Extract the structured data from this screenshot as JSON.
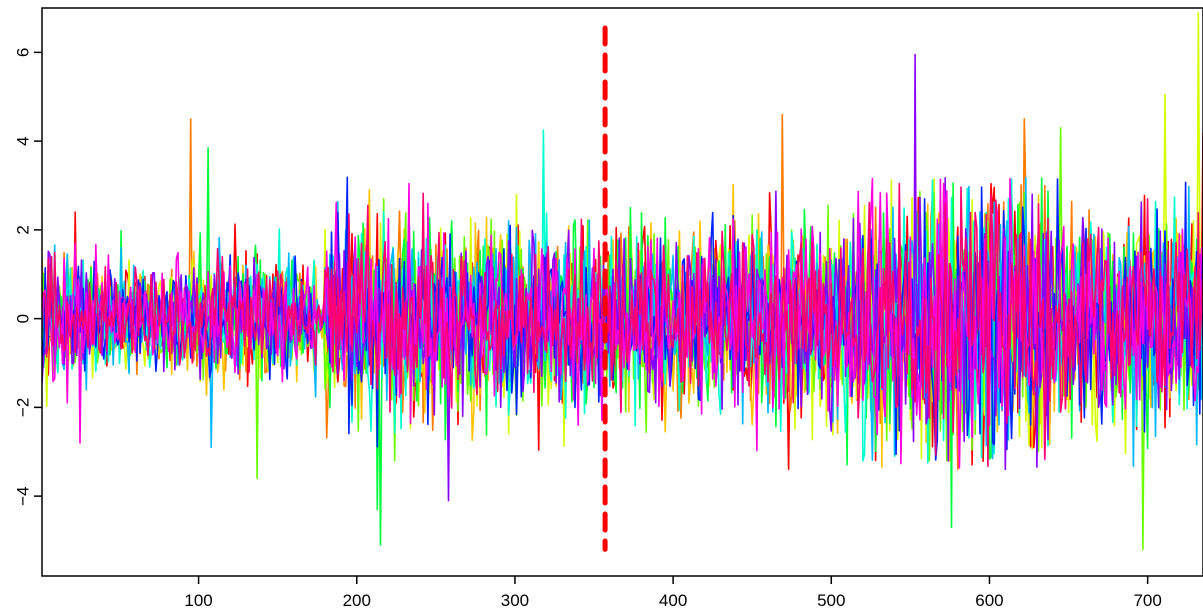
{
  "chart_data": {
    "type": "line",
    "title": "",
    "xlabel": "",
    "ylabel": "",
    "xlim": [
      1,
      735
    ],
    "ylim": [
      -5.8,
      7.0
    ],
    "x_ticks": [
      {
        "value": 100,
        "label": "100"
      },
      {
        "value": 200,
        "label": "200"
      },
      {
        "value": 300,
        "label": "300"
      },
      {
        "value": 400,
        "label": "400"
      },
      {
        "value": 500,
        "label": "500"
      },
      {
        "value": 600,
        "label": "600"
      },
      {
        "value": 700,
        "label": "700"
      }
    ],
    "y_ticks": [
      {
        "value": -4,
        "label": "−4"
      },
      {
        "value": -2,
        "label": "−2"
      },
      {
        "value": 0,
        "label": "0"
      },
      {
        "value": 2,
        "label": "2"
      },
      {
        "value": 4,
        "label": "4"
      },
      {
        "value": 6,
        "label": "6"
      }
    ],
    "n_points": 735,
    "series_colors": [
      "#FF0000",
      "#FF7A00",
      "#FFC300",
      "#D7FF00",
      "#6BFF00",
      "#00FF3A",
      "#00FFD0",
      "#00B8FF",
      "#0022FF",
      "#8A00FF",
      "#FF00E0",
      "#FF0070"
    ],
    "noise_segments": [
      {
        "x_start": 1,
        "x_end": 30,
        "amplitude": 0.7
      },
      {
        "x_start": 30,
        "x_end": 95,
        "amplitude": 0.55
      },
      {
        "x_start": 95,
        "x_end": 130,
        "amplitude": 0.6
      },
      {
        "x_start": 130,
        "x_end": 175,
        "amplitude": 0.65
      },
      {
        "x_start": 175,
        "x_end": 180,
        "amplitude": 0.2
      },
      {
        "x_start": 180,
        "x_end": 260,
        "amplitude": 1.0
      },
      {
        "x_start": 260,
        "x_end": 360,
        "amplitude": 0.95
      },
      {
        "x_start": 360,
        "x_end": 440,
        "amplitude": 0.9
      },
      {
        "x_start": 440,
        "x_end": 520,
        "amplitude": 1.0
      },
      {
        "x_start": 520,
        "x_end": 560,
        "amplitude": 1.3
      },
      {
        "x_start": 560,
        "x_end": 640,
        "amplitude": 1.5
      },
      {
        "x_start": 640,
        "x_end": 700,
        "amplitude": 1.1
      },
      {
        "x_start": 700,
        "x_end": 735,
        "amplitude": 1.2
      }
    ],
    "spikes": [
      {
        "x": 22,
        "y": 2.4,
        "series": 0
      },
      {
        "x": 25,
        "y": -2.8,
        "series": 10
      },
      {
        "x": 95,
        "y": 4.5,
        "series": 1
      },
      {
        "x": 106,
        "y": 3.85,
        "series": 5
      },
      {
        "x": 108,
        "y": -2.9,
        "series": 7
      },
      {
        "x": 137,
        "y": -3.6,
        "series": 4
      },
      {
        "x": 213,
        "y": -4.3,
        "series": 5
      },
      {
        "x": 215,
        "y": -5.1,
        "series": 5
      },
      {
        "x": 258,
        "y": -4.1,
        "series": 9
      },
      {
        "x": 318,
        "y": 4.25,
        "series": 6
      },
      {
        "x": 469,
        "y": 4.6,
        "series": 1
      },
      {
        "x": 553,
        "y": 5.95,
        "series": 9
      },
      {
        "x": 576,
        "y": -4.7,
        "series": 5
      },
      {
        "x": 622,
        "y": 4.5,
        "series": 1
      },
      {
        "x": 645,
        "y": 4.3,
        "series": 4
      },
      {
        "x": 697,
        "y": -5.2,
        "series": 4
      },
      {
        "x": 711,
        "y": -5.5,
        "series": 3
      },
      {
        "x": 711,
        "y": 5.05,
        "series": 3
      },
      {
        "x": 732,
        "y": 6.9,
        "series": 3
      },
      {
        "x": 735,
        "y": 4.2,
        "series": 0
      }
    ],
    "vertical_marker": {
      "x": 357,
      "y_top": 6.55,
      "y_bottom": -5.2,
      "color": "#FF0000",
      "style": "dashed"
    },
    "grid": false,
    "legend": "none"
  }
}
